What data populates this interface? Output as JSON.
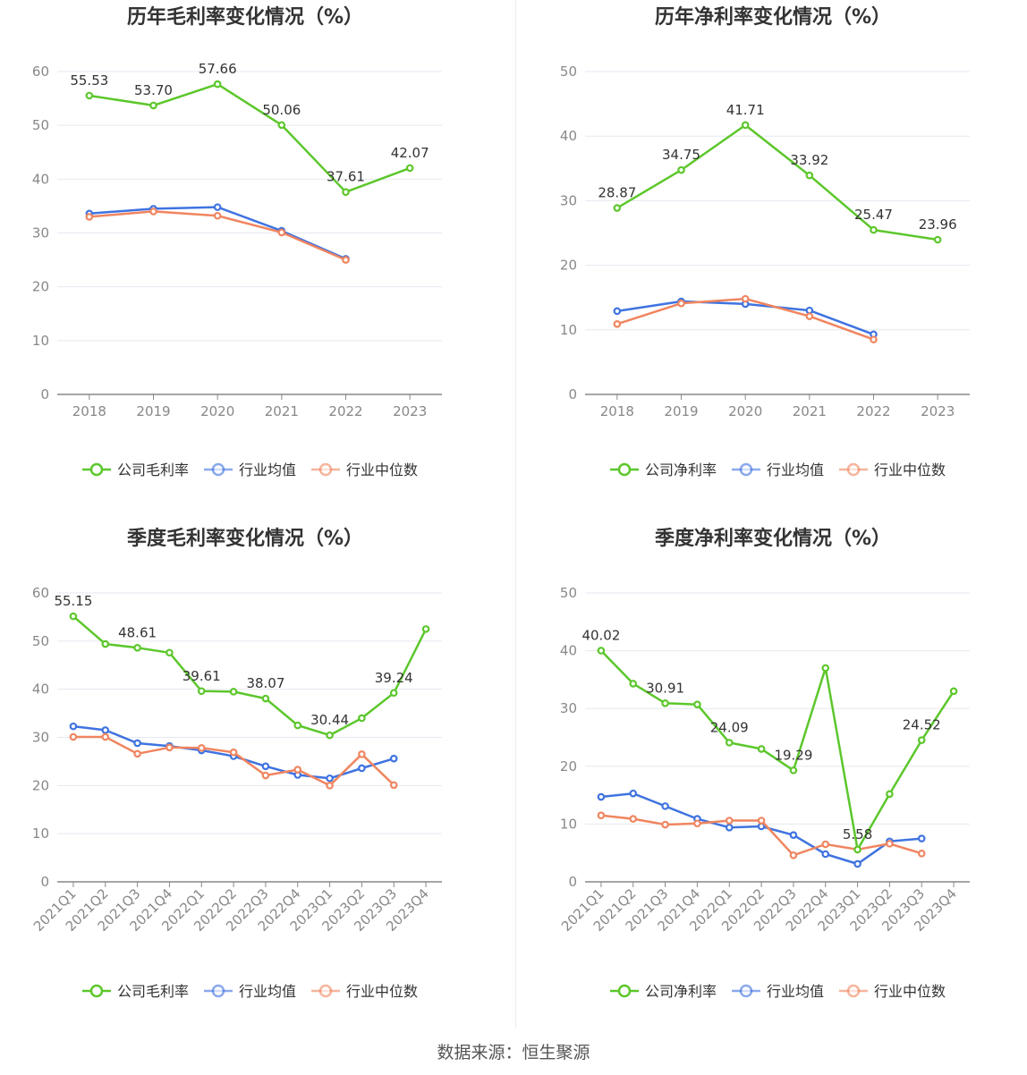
{
  "source": "数据来源：恒生聚源",
  "colors": {
    "company": "#5cc72c",
    "avg": "#3f73e0",
    "median": "#f0855f",
    "grid": "#e6e8f0",
    "axis": "#888888"
  },
  "chart_data": [
    {
      "type": "line",
      "title": "历年毛利率变化情况（%）",
      "categories": [
        "2018",
        "2019",
        "2020",
        "2021",
        "2022",
        "2023"
      ],
      "ylim": [
        0,
        60
      ],
      "yticks": [
        0,
        10,
        20,
        30,
        40,
        50,
        60
      ],
      "series": [
        {
          "name": "公司毛利率",
          "values": [
            55.53,
            53.7,
            57.66,
            50.06,
            37.61,
            42.07
          ],
          "labels": [
            "55.53",
            "53.70",
            "57.66",
            "50.06",
            "37.61",
            "42.07"
          ]
        },
        {
          "name": "行业均值",
          "values": [
            33.6,
            34.5,
            34.8,
            30.4,
            25.2,
            null
          ]
        },
        {
          "name": "行业中位数",
          "values": [
            33.0,
            34.0,
            33.2,
            30.1,
            25.0,
            null
          ]
        }
      ]
    },
    {
      "type": "line",
      "title": "历年净利率变化情况（%）",
      "categories": [
        "2018",
        "2019",
        "2020",
        "2021",
        "2022",
        "2023"
      ],
      "ylim": [
        0,
        50
      ],
      "yticks": [
        0,
        10,
        20,
        30,
        40,
        50
      ],
      "series": [
        {
          "name": "公司净利率",
          "values": [
            28.87,
            34.75,
            41.71,
            33.92,
            25.47,
            23.96
          ],
          "labels": [
            "28.87",
            "34.75",
            "41.71",
            "33.92",
            "25.47",
            "23.96"
          ]
        },
        {
          "name": "行业均值",
          "values": [
            12.9,
            14.4,
            14.0,
            13.0,
            9.3,
            null
          ]
        },
        {
          "name": "行业中位数",
          "values": [
            10.9,
            14.1,
            14.8,
            12.1,
            8.5,
            null
          ]
        }
      ]
    },
    {
      "type": "line",
      "title": "季度毛利率变化情况（%）",
      "categories": [
        "2021Q1",
        "2021Q2",
        "2021Q3",
        "2021Q4",
        "2022Q1",
        "2022Q2",
        "2022Q3",
        "2022Q4",
        "2023Q1",
        "2023Q2",
        "2023Q3",
        "2023Q4"
      ],
      "ylim": [
        0,
        60
      ],
      "yticks": [
        0,
        10,
        20,
        30,
        40,
        50,
        60
      ],
      "series": [
        {
          "name": "公司毛利率",
          "values": [
            55.15,
            49.4,
            48.61,
            47.6,
            39.61,
            39.5,
            38.07,
            32.5,
            30.44,
            34.0,
            39.24,
            52.5
          ],
          "labels": [
            "55.15",
            "",
            "48.61",
            "",
            "39.61",
            "",
            "38.07",
            "",
            "30.44",
            "",
            "39.24",
            ""
          ]
        },
        {
          "name": "行业均值",
          "values": [
            32.3,
            31.5,
            28.8,
            28.2,
            27.3,
            26.1,
            24.0,
            22.2,
            21.5,
            23.6,
            25.6,
            null
          ]
        },
        {
          "name": "行业中位数",
          "values": [
            30.1,
            30.1,
            26.6,
            27.9,
            27.8,
            26.9,
            22.1,
            23.3,
            20.0,
            26.5,
            20.1,
            null
          ]
        }
      ]
    },
    {
      "type": "line",
      "title": "季度净利率变化情况（%）",
      "categories": [
        "2021Q1",
        "2021Q2",
        "2021Q3",
        "2021Q4",
        "2022Q1",
        "2022Q2",
        "2022Q3",
        "2022Q4",
        "2023Q1",
        "2023Q2",
        "2023Q3",
        "2023Q4"
      ],
      "ylim": [
        0,
        50
      ],
      "yticks": [
        0,
        10,
        20,
        30,
        40,
        50
      ],
      "series": [
        {
          "name": "公司净利率",
          "values": [
            40.02,
            34.3,
            30.91,
            30.7,
            24.09,
            23.0,
            19.29,
            37.0,
            5.58,
            15.2,
            24.52,
            33.0
          ],
          "labels": [
            "40.02",
            "",
            "30.91",
            "",
            "24.09",
            "",
            "19.29",
            "",
            "5.58",
            "",
            "24.52",
            ""
          ]
        },
        {
          "name": "行业均值",
          "values": [
            14.7,
            15.3,
            13.1,
            10.9,
            9.4,
            9.6,
            8.1,
            4.8,
            3.1,
            7.0,
            7.5,
            null
          ]
        },
        {
          "name": "行业中位数",
          "values": [
            11.5,
            10.9,
            9.9,
            10.1,
            10.6,
            10.6,
            4.6,
            6.5,
            5.6,
            6.6,
            4.9,
            null
          ]
        }
      ]
    }
  ]
}
